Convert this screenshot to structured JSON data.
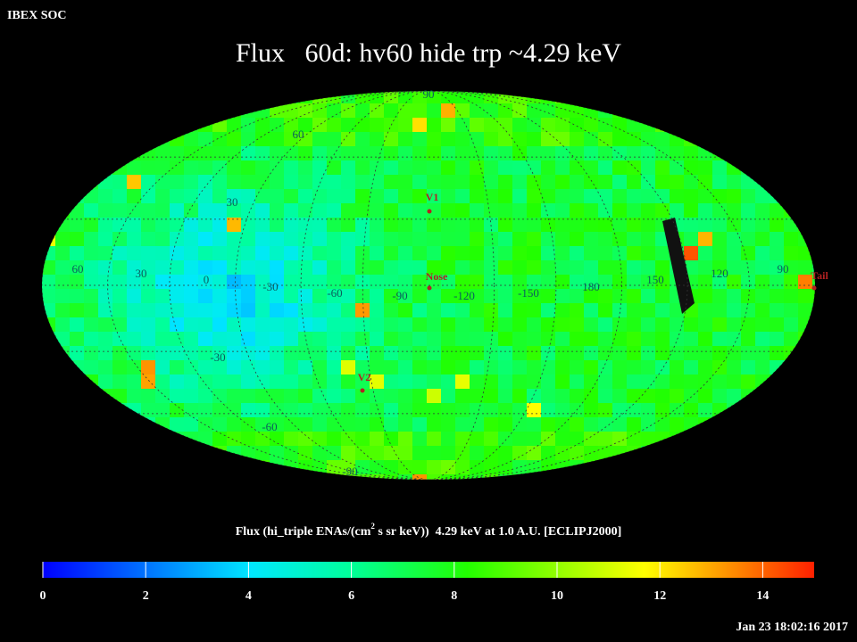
{
  "header": {
    "label": "IBEX SOC",
    "title": "Flux   60d: hv60 hide trp ~4.29 keV"
  },
  "map": {
    "grid_labels": [
      "90",
      "60",
      "30",
      "60",
      "30",
      "0",
      "-30",
      "-60",
      "-90",
      "-120",
      "-150",
      "180",
      "150",
      "120",
      "90",
      "-30",
      "-60",
      "-90"
    ],
    "markers": [
      "V1",
      "Nose",
      "V2",
      "Tail"
    ]
  },
  "colorbar": {
    "label_parts": [
      "Flux (hi_triple ENAs/(cm",
      "2",
      " s sr keV))  4.29 keV at 1.0 A.U. [ECLIPJ2000]"
    ],
    "range": [
      0,
      15
    ],
    "ticks": [
      0,
      2,
      4,
      6,
      8,
      10,
      12,
      14
    ]
  },
  "footer": {
    "timestamp": "Jan 23 18:02:16 2017"
  }
}
